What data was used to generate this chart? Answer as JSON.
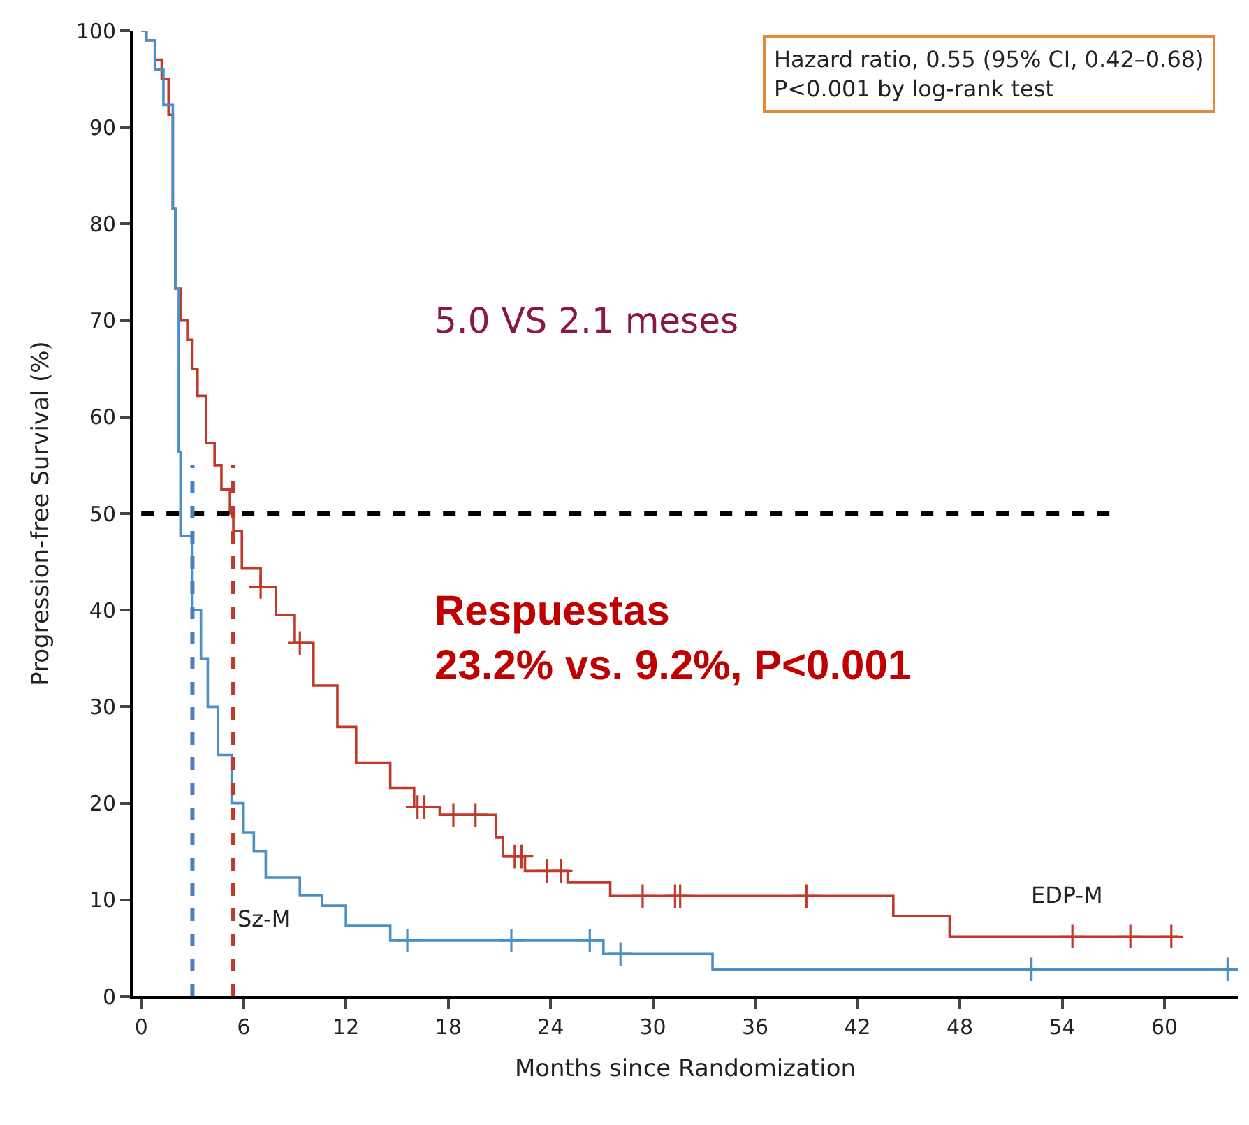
{
  "chart_data": {
    "type": "step",
    "xlabel": "Months since Randomization",
    "ylabel": "Progression-free Survival (%)",
    "xlim": [
      -0.5,
      64.3
    ],
    "xticks": [
      0,
      6,
      12,
      18,
      24,
      30,
      36,
      42,
      48,
      54,
      60
    ],
    "ylim": [
      0,
      100
    ],
    "yticks": [
      0,
      10,
      20,
      30,
      40,
      50,
      60,
      70,
      80,
      90,
      100
    ],
    "legend": false,
    "marker": "none",
    "line_style": "solid",
    "series": [
      {
        "name": "EDP-M",
        "color": "#c0392b",
        "x": [
          0,
          0.3,
          0.8,
          1.2,
          1.6,
          1.85,
          2.0,
          2.3,
          2.7,
          3.0,
          3.3,
          3.8,
          4.3,
          4.7,
          5.2,
          5.4,
          5.9,
          7.0,
          7.9,
          9.0,
          10.1,
          11.5,
          12.6,
          14.6,
          16.0,
          17.5,
          20.8,
          21.2,
          21.5,
          22.5,
          25.0,
          27.5,
          44.1,
          47.4,
          60.8
        ],
        "values": [
          100,
          99,
          97,
          95,
          91.3,
          81.6,
          73.3,
          70,
          68,
          65,
          62.2,
          57.3,
          55,
          52.5,
          50,
          48.2,
          44.3,
          42.4,
          39.5,
          36.6,
          32.2,
          27.9,
          24.2,
          21.6,
          19.6,
          18.8,
          16.5,
          14.5,
          14.5,
          13.0,
          11.8,
          10.4,
          8.3,
          6.2,
          6.2
        ]
      },
      {
        "name": "Sz-M",
        "color": "#4a90c8",
        "x": [
          0,
          0.3,
          0.8,
          1.3,
          1.85,
          2.0,
          2.2,
          2.3,
          3.0,
          3.5,
          3.9,
          4.5,
          5.3,
          6.0,
          6.6,
          7.3,
          9.3,
          10.6,
          12.0,
          14.6,
          27.1,
          33.5,
          64.3
        ],
        "values": [
          100,
          99,
          96,
          92.3,
          81.6,
          73.3,
          56.4,
          47.7,
          40,
          35,
          30,
          25,
          20,
          17,
          15,
          12.3,
          10.5,
          9.4,
          7.3,
          5.8,
          4.4,
          2.8,
          2.8
        ]
      },
      {
        "type": "scatter",
        "marker": "cross",
        "color": "#c0392b",
        "x": [
          7.0,
          9.3,
          16.2,
          16.6,
          18.3,
          19.6,
          21.9,
          22.3,
          23.8,
          24.6,
          29.4,
          31.3,
          31.6,
          39.0,
          54.6,
          58.0,
          60.4
        ],
        "values": [
          42.4,
          36.6,
          19.6,
          19.6,
          18.8,
          18.8,
          14.5,
          14.5,
          13.0,
          13.0,
          10.4,
          10.4,
          10.4,
          10.4,
          6.2,
          6.2,
          6.2
        ]
      },
      {
        "type": "scatter",
        "marker": "cross",
        "color": "#4a90c8",
        "x": [
          15.6,
          21.7,
          26.3,
          28.1,
          52.2,
          63.7
        ],
        "values": [
          5.8,
          5.8,
          5.8,
          4.4,
          2.8,
          2.8
        ]
      }
    ],
    "ref_lines": [
      {
        "axis": "y",
        "value": 50,
        "color": "#000000",
        "line_style": "dashed"
      },
      {
        "axis": "x",
        "value": 3.0,
        "color": "#4a7fc0",
        "line_style": "dashed"
      },
      {
        "axis": "x",
        "value": 5.4,
        "color": "#c0392b",
        "line_style": "dashed"
      }
    ],
    "annotations": [
      "Hazard ratio, 0.55 (95% CI, 0.42–0.68)\nP<0.001 by log-rank test",
      "5.0 VS 2.1 meses",
      "Respuestas\n23.2% vs. 9.2%, P<0.001"
    ]
  }
}
